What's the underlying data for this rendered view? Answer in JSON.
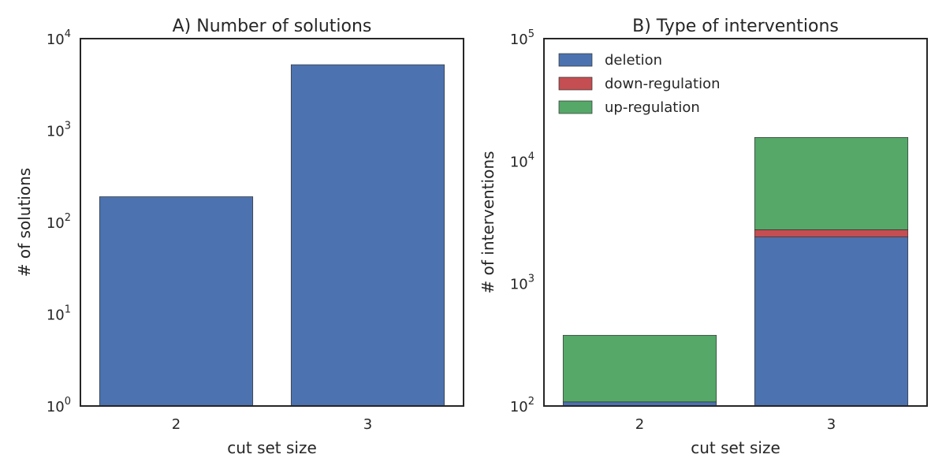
{
  "chart_data": [
    {
      "type": "bar",
      "title": "A) Number of solutions",
      "xlabel": "cut set size",
      "ylabel": "# of solutions",
      "yscale": "log",
      "ylim": [
        1,
        10000
      ],
      "categories": [
        "2",
        "3"
      ],
      "y_tick_labels": [
        {
          "base": "10",
          "exp": "0"
        },
        {
          "base": "10",
          "exp": "1"
        },
        {
          "base": "10",
          "exp": "2"
        },
        {
          "base": "10",
          "exp": "3"
        },
        {
          "base": "10",
          "exp": "4"
        }
      ],
      "series": [
        {
          "values": [
            190,
            5200
          ],
          "color": "#4c72b0"
        }
      ],
      "grid": false
    },
    {
      "type": "bar",
      "stacked": true,
      "title": "B) Type of interventions",
      "xlabel": "cut set size",
      "ylabel": "# of interventions",
      "yscale": "log",
      "ylim": [
        100,
        100000
      ],
      "categories": [
        "2",
        "3"
      ],
      "y_tick_labels": [
        {
          "base": "10",
          "exp": "2"
        },
        {
          "base": "10",
          "exp": "3"
        },
        {
          "base": "10",
          "exp": "4"
        },
        {
          "base": "10",
          "exp": "5"
        }
      ],
      "series": [
        {
          "name": "deletion",
          "values": [
            108,
            2400
          ],
          "color": "#4c72b0"
        },
        {
          "name": "down-regulation",
          "values": [
            0,
            350
          ],
          "color": "#c44e52"
        },
        {
          "name": "up-regulation",
          "values": [
            270,
            12850
          ],
          "color": "#55a868"
        }
      ],
      "legend_position": "top-left",
      "grid": false
    }
  ]
}
